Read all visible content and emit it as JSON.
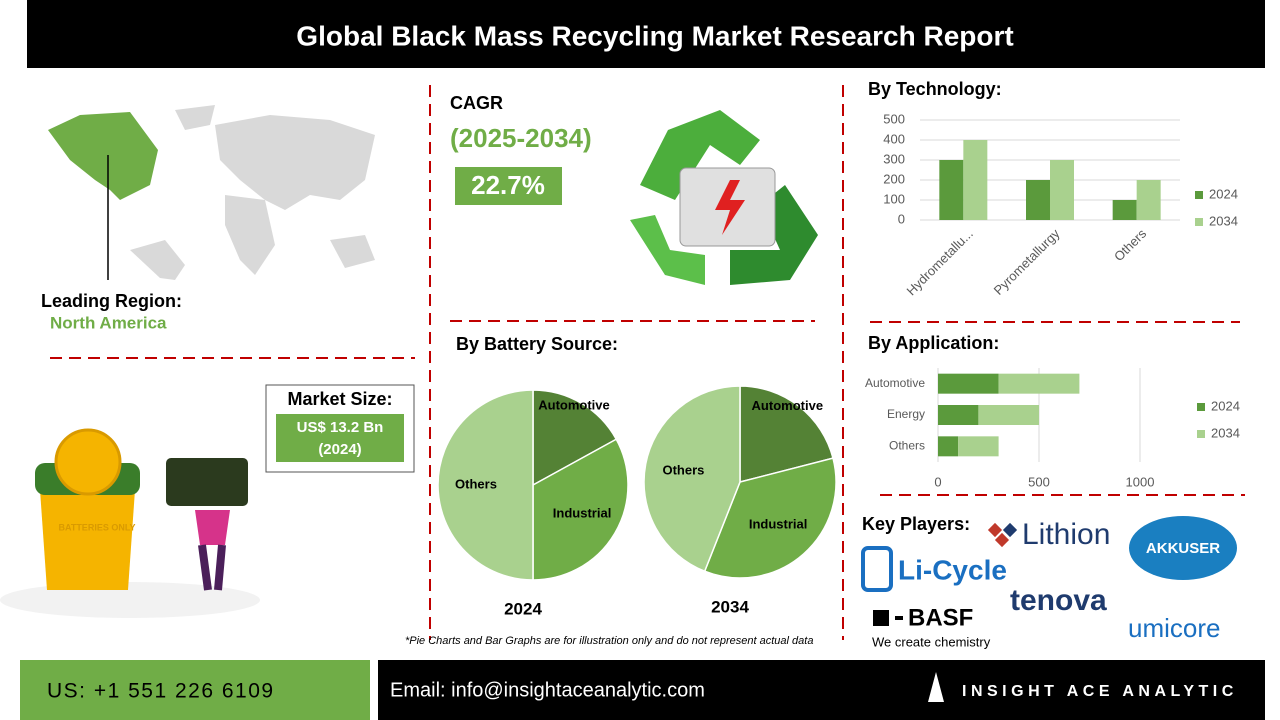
{
  "header": {
    "title": "Global Black Mass Recycling Market Research Report"
  },
  "region": {
    "label": "Leading Region:",
    "value": "North America"
  },
  "cagr": {
    "label": "CAGR",
    "period": "(2025-2034)",
    "value": "22.7%"
  },
  "market_size": {
    "label": "Market Size:",
    "value": "US$ 13.2 Bn",
    "year": "(2024)"
  },
  "illustration_text": "BATTERIES ONLY",
  "sections": {
    "battery_source": "By Battery Source:",
    "technology": "By Technology:",
    "application": "By Application:",
    "key_players": "Key Players:"
  },
  "key_players": [
    "Lithion",
    "Li-Cycle",
    "AKKUSER",
    "tenova",
    "BASF",
    "We create chemistry",
    "umicore"
  ],
  "footnote": "*Pie Charts and Bar Graphs are for illustration only and do not represent actual data",
  "footer": {
    "phone": "US: +1 551 226 6109",
    "email": "Email: info@insightaceanalytic.com",
    "brand": "INSIGHT ACE ANALYTIC"
  },
  "chart_data": [
    {
      "type": "bar",
      "orientation": "vertical",
      "categories": [
        "Hydrometallu...",
        "Pyrometallurgy",
        "Others"
      ],
      "series": [
        {
          "name": "2024",
          "color": "#5b9a3c",
          "values": [
            300,
            200,
            100
          ]
        },
        {
          "name": "2034",
          "color": "#a9d18e",
          "values": [
            400,
            300,
            200
          ]
        }
      ],
      "ylim": [
        0,
        500
      ],
      "yticks": [
        0,
        100,
        200,
        300,
        400,
        500
      ],
      "grid": true,
      "legend": "right"
    },
    {
      "type": "bar",
      "orientation": "horizontal",
      "stacked": true,
      "categories": [
        "Automotive",
        "Energy",
        "Others"
      ],
      "series": [
        {
          "name": "2024",
          "color": "#5b9a3c",
          "values": [
            300,
            200,
            100
          ]
        },
        {
          "name": "2034",
          "color": "#a9d18e",
          "values": [
            400,
            300,
            200
          ]
        }
      ],
      "xlim": [
        0,
        1000
      ],
      "xticks": [
        0,
        500,
        1000
      ],
      "grid": true,
      "legend": "right"
    },
    {
      "type": "pie",
      "title": "2024",
      "categories": [
        "Automotive",
        "Industrial",
        "Others"
      ],
      "values": [
        17,
        33,
        50
      ],
      "colors": [
        "#548235",
        "#70ad47",
        "#a9d18e"
      ]
    },
    {
      "type": "pie",
      "title": "2034",
      "categories": [
        "Automotive",
        "Industrial",
        "Others"
      ],
      "values": [
        21,
        35,
        44
      ],
      "colors": [
        "#548235",
        "#70ad47",
        "#a9d18e"
      ]
    }
  ]
}
